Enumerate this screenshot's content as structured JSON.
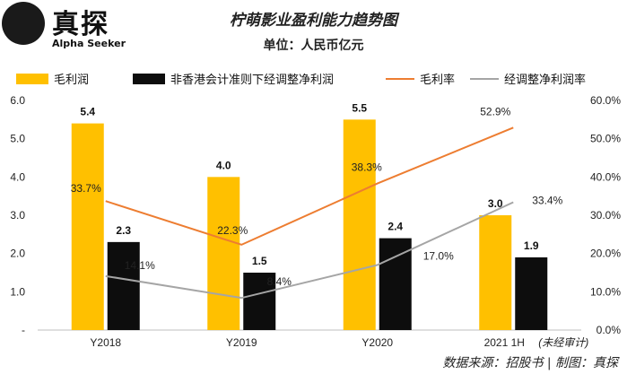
{
  "brand": {
    "name": "真探",
    "sub": "Alpha Seeker"
  },
  "chart_data": {
    "type": "bar",
    "title": "柠萌影业盈利能力趋势图",
    "subtitle": "单位：人民币亿元",
    "categories": [
      "Y2018",
      "Y2019",
      "Y2020",
      "2021 1H"
    ],
    "category_note": "(未经审计)",
    "series": [
      {
        "name": "毛利润",
        "kind": "bar",
        "axis": "left",
        "color": "#FFC000",
        "values": [
          5.4,
          4.0,
          5.5,
          3.0
        ],
        "labels": [
          "5.4",
          "4.0",
          "5.5",
          "3.0"
        ]
      },
      {
        "name": "非香港会计准则下经调整净利润",
        "kind": "bar",
        "axis": "left",
        "color": "#0d0d0d",
        "values": [
          2.3,
          1.5,
          2.4,
          1.9
        ],
        "labels": [
          "2.3",
          "1.5",
          "2.4",
          "1.9"
        ]
      },
      {
        "name": "毛利率",
        "kind": "line",
        "axis": "right",
        "color": "#ED7D31",
        "values": [
          33.7,
          22.3,
          38.3,
          52.9
        ],
        "labels": [
          "33.7%",
          "22.3%",
          "38.3%",
          "52.9%"
        ]
      },
      {
        "name": "经调整净利润率",
        "kind": "line",
        "axis": "right",
        "color": "#A5A5A5",
        "values": [
          14.1,
          8.4,
          17.0,
          33.4
        ],
        "labels": [
          "14.1%",
          "8.4%",
          "17.0%",
          "33.4%"
        ]
      }
    ],
    "left_axis": {
      "ylim": [
        0,
        6
      ],
      "ticks": [
        "-",
        "1.0",
        "2.0",
        "3.0",
        "4.0",
        "5.0",
        "6.0"
      ]
    },
    "right_axis": {
      "ylim": [
        0,
        60
      ],
      "ticks": [
        "0.0%",
        "10.0%",
        "20.0%",
        "30.0%",
        "40.0%",
        "50.0%",
        "60.0%"
      ]
    },
    "legend_position": "top"
  },
  "source": "数据来源：招股书 | 制图：真探"
}
